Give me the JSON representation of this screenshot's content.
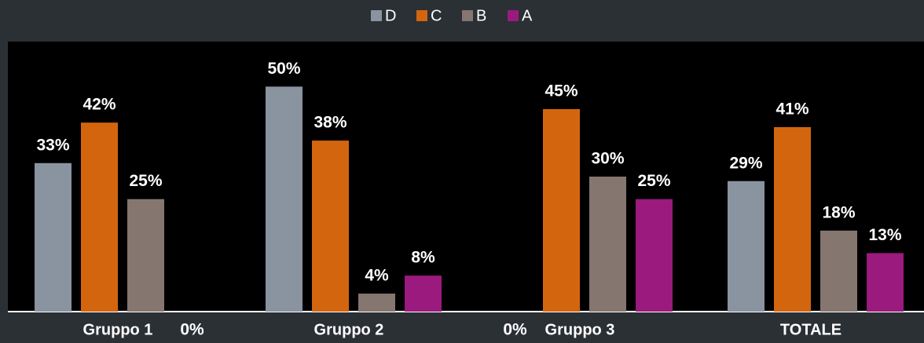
{
  "chart_data": {
    "type": "bar",
    "categories": [
      "Gruppo 1",
      "Gruppo 2",
      "Gruppo 3",
      "TOTALE"
    ],
    "series": [
      {
        "name": "D",
        "color": "#8a93a0",
        "values": [
          33,
          50,
          0,
          29
        ],
        "value_labels": [
          "33%",
          "50%",
          "0%",
          "29%"
        ]
      },
      {
        "name": "C",
        "color": "#d4650f",
        "values": [
          42,
          38,
          45,
          41
        ],
        "value_labels": [
          "42%",
          "38%",
          "45%",
          "41%"
        ]
      },
      {
        "name": "B",
        "color": "#857670",
        "values": [
          25,
          4,
          30,
          18
        ],
        "value_labels": [
          "25%",
          "4%",
          "30%",
          "18%"
        ]
      },
      {
        "name": "A",
        "color": "#9b1a7d",
        "values": [
          0,
          8,
          25,
          13
        ],
        "value_labels": [
          "0%",
          "8%",
          "25%",
          "13%"
        ]
      }
    ],
    "ylim": [
      0,
      60
    ],
    "legend": "top"
  }
}
